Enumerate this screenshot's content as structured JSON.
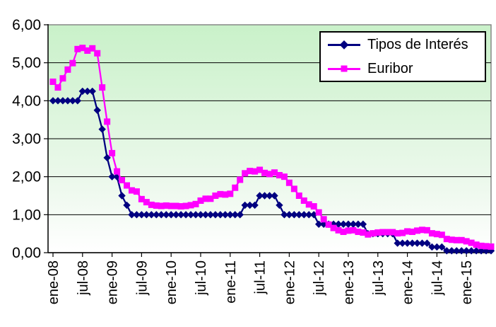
{
  "chart_data": {
    "type": "line",
    "title": "",
    "xlabel": "",
    "ylabel": "",
    "n_points": 90,
    "x_axis": {
      "unit": "month",
      "first_month": "ene-08",
      "last_month": "jun-15",
      "tick_labels": [
        "ene-08",
        "jul-08",
        "ene-09",
        "jul-09",
        "ene-10",
        "jul-10",
        "ene-11",
        "jul-11",
        "ene-12",
        "jul-12",
        "ene-13",
        "jul-13",
        "ene-14",
        "jul-14",
        "ene-15"
      ],
      "tick_month_indices": [
        0,
        6,
        12,
        18,
        24,
        30,
        36,
        42,
        48,
        54,
        60,
        66,
        72,
        78,
        84
      ]
    },
    "y_axis": {
      "min": 0,
      "max": 6,
      "step": 1,
      "tick_labels": [
        "6,00",
        "5,00",
        "4,00",
        "3,00",
        "2,00",
        "1,00",
        "0,00"
      ],
      "grid": true
    },
    "legend": {
      "position": "top-right",
      "bordered": true
    },
    "plot_background": {
      "top_color": "#c9f1c9",
      "mid_color": "#eef9ee",
      "bottom_color": "#ffffff",
      "border_color": "#808080"
    },
    "series": [
      {
        "name": "Tipos de Interés",
        "color": "#000080",
        "marker": "diamond",
        "values": [
          4.0,
          4.0,
          4.0,
          4.0,
          4.0,
          4.0,
          4.25,
          4.25,
          4.25,
          3.75,
          3.25,
          2.5,
          2.0,
          2.0,
          1.5,
          1.25,
          1.0,
          1.0,
          1.0,
          1.0,
          1.0,
          1.0,
          1.0,
          1.0,
          1.0,
          1.0,
          1.0,
          1.0,
          1.0,
          1.0,
          1.0,
          1.0,
          1.0,
          1.0,
          1.0,
          1.0,
          1.0,
          1.0,
          1.0,
          1.25,
          1.25,
          1.25,
          1.5,
          1.5,
          1.5,
          1.5,
          1.25,
          1.0,
          1.0,
          1.0,
          1.0,
          1.0,
          1.0,
          1.0,
          0.75,
          0.75,
          0.75,
          0.75,
          0.75,
          0.75,
          0.75,
          0.75,
          0.75,
          0.75,
          0.5,
          0.5,
          0.5,
          0.5,
          0.5,
          0.5,
          0.25,
          0.25,
          0.25,
          0.25,
          0.25,
          0.25,
          0.25,
          0.15,
          0.15,
          0.15,
          0.05,
          0.05,
          0.05,
          0.05,
          0.05,
          0.05,
          0.05,
          0.05,
          0.05,
          0.05
        ]
      },
      {
        "name": "Euribor",
        "color": "#FF00FF",
        "marker": "square",
        "values": [
          4.5,
          4.35,
          4.59,
          4.82,
          4.99,
          5.36,
          5.39,
          5.32,
          5.38,
          5.25,
          4.35,
          3.45,
          2.62,
          2.14,
          1.91,
          1.77,
          1.64,
          1.61,
          1.41,
          1.33,
          1.26,
          1.24,
          1.23,
          1.24,
          1.23,
          1.23,
          1.22,
          1.23,
          1.25,
          1.28,
          1.37,
          1.42,
          1.42,
          1.5,
          1.54,
          1.53,
          1.55,
          1.71,
          1.92,
          2.09,
          2.15,
          2.14,
          2.18,
          2.1,
          2.07,
          2.11,
          2.04,
          2.0,
          1.84,
          1.68,
          1.5,
          1.37,
          1.27,
          1.22,
          1.06,
          0.88,
          0.74,
          0.65,
          0.59,
          0.55,
          0.58,
          0.59,
          0.55,
          0.53,
          0.48,
          0.51,
          0.53,
          0.54,
          0.54,
          0.54,
          0.51,
          0.52,
          0.56,
          0.55,
          0.58,
          0.6,
          0.59,
          0.51,
          0.49,
          0.47,
          0.36,
          0.34,
          0.33,
          0.33,
          0.3,
          0.26,
          0.21,
          0.18,
          0.17,
          0.16
        ]
      }
    ]
  }
}
